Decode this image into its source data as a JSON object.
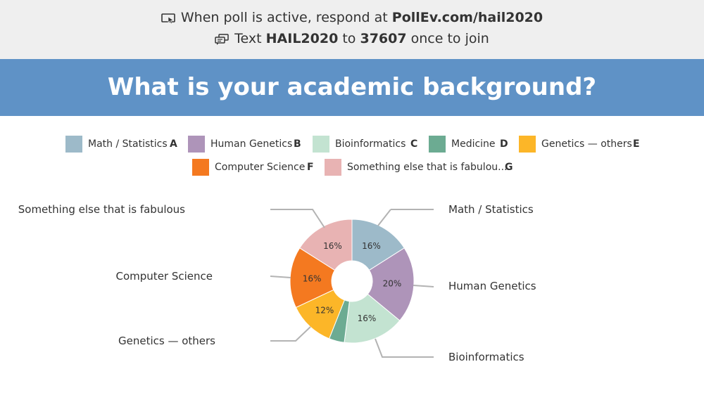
{
  "header": {
    "line1_prefix": "When poll is active, respond at",
    "line1_url": "PollEv.com/hail2020",
    "line2_prefix": "Text",
    "line2_code": "HAIL2020",
    "line2_mid": "to",
    "line2_number": "37607",
    "line2_suffix": "once to join"
  },
  "question": "What is your academic background?",
  "legend": [
    {
      "label": "Math / Statistics",
      "letter": "A"
    },
    {
      "label": "Human Genetics",
      "letter": "B"
    },
    {
      "label": "Bioinformatics",
      "letter": "C"
    },
    {
      "label": "Medicine",
      "letter": "D"
    },
    {
      "label": "Genetics — others",
      "letter": "E"
    },
    {
      "label": "Computer Science",
      "letter": "F"
    },
    {
      "label": "Something else that is fabulou...",
      "letter": "G"
    }
  ],
  "chart_data": {
    "type": "pie",
    "variant": "donut",
    "categories": [
      "Math / Statistics",
      "Human Genetics",
      "Bioinformatics",
      "Medicine",
      "Genetics — others",
      "Computer Science",
      "Something else that is fabulous"
    ],
    "values": [
      16,
      20,
      16,
      4,
      12,
      16,
      16
    ],
    "value_labels": [
      "16%",
      "20%",
      "16%",
      "",
      "12%",
      "16%",
      "16%"
    ],
    "colors": [
      "#9dbac9",
      "#ae94b9",
      "#c3e3d1",
      "#6cab92",
      "#fcb628",
      "#f47920",
      "#e8b3b3"
    ]
  }
}
